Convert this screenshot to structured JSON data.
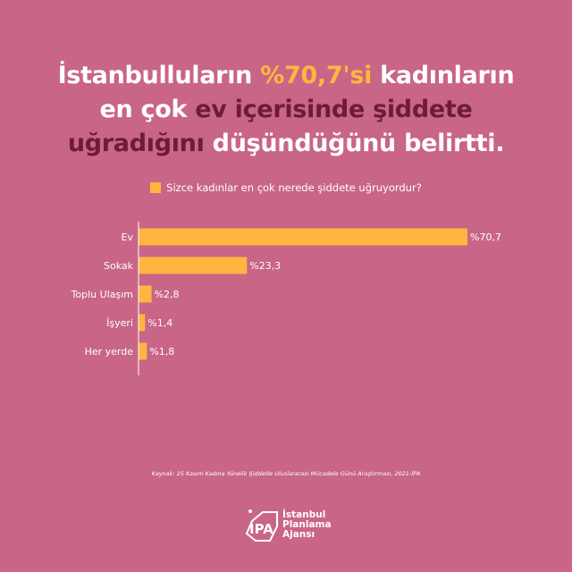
{
  "headline": {
    "part1": "İstanbulluların ",
    "highlight1": "%70,7'si",
    "part2": " kadınların",
    "part3": "en çok ",
    "highlight2": "ev içerisinde şiddete",
    "highlight3": "uğradığını",
    "part4": " düşündüğünü belirtti."
  },
  "colors": {
    "background": "#c96586",
    "bar": "#ffb53f",
    "highlight_orange": "#ffb53f",
    "highlight_dark": "#6e1a3c"
  },
  "chart_data": {
    "type": "bar",
    "orientation": "horizontal",
    "legend": [
      "Sizce kadınlar en çok nerede şiddete uğruyordur?"
    ],
    "legend_position": "top-center",
    "categories": [
      "Ev",
      "Sokak",
      "Toplu Ulaşım",
      "İşyeri",
      "Her yerde"
    ],
    "values": [
      70.7,
      23.3,
      2.8,
      1.4,
      1.8
    ],
    "labels": [
      "%70,7",
      "%23,3",
      "%2,8",
      "%1,4",
      "%1,8"
    ],
    "xlim": [
      0,
      70.7
    ],
    "grid": false
  },
  "source": "Kaynak: 25 Kasım Kadına Yönelik Şiddetle Uluslararası Mücadele Günü Araştırması, 2021-İPA",
  "logo": {
    "mark": "İPA",
    "line1": "İstanbul",
    "line2": "Planlama",
    "line3": "Ajansı"
  }
}
